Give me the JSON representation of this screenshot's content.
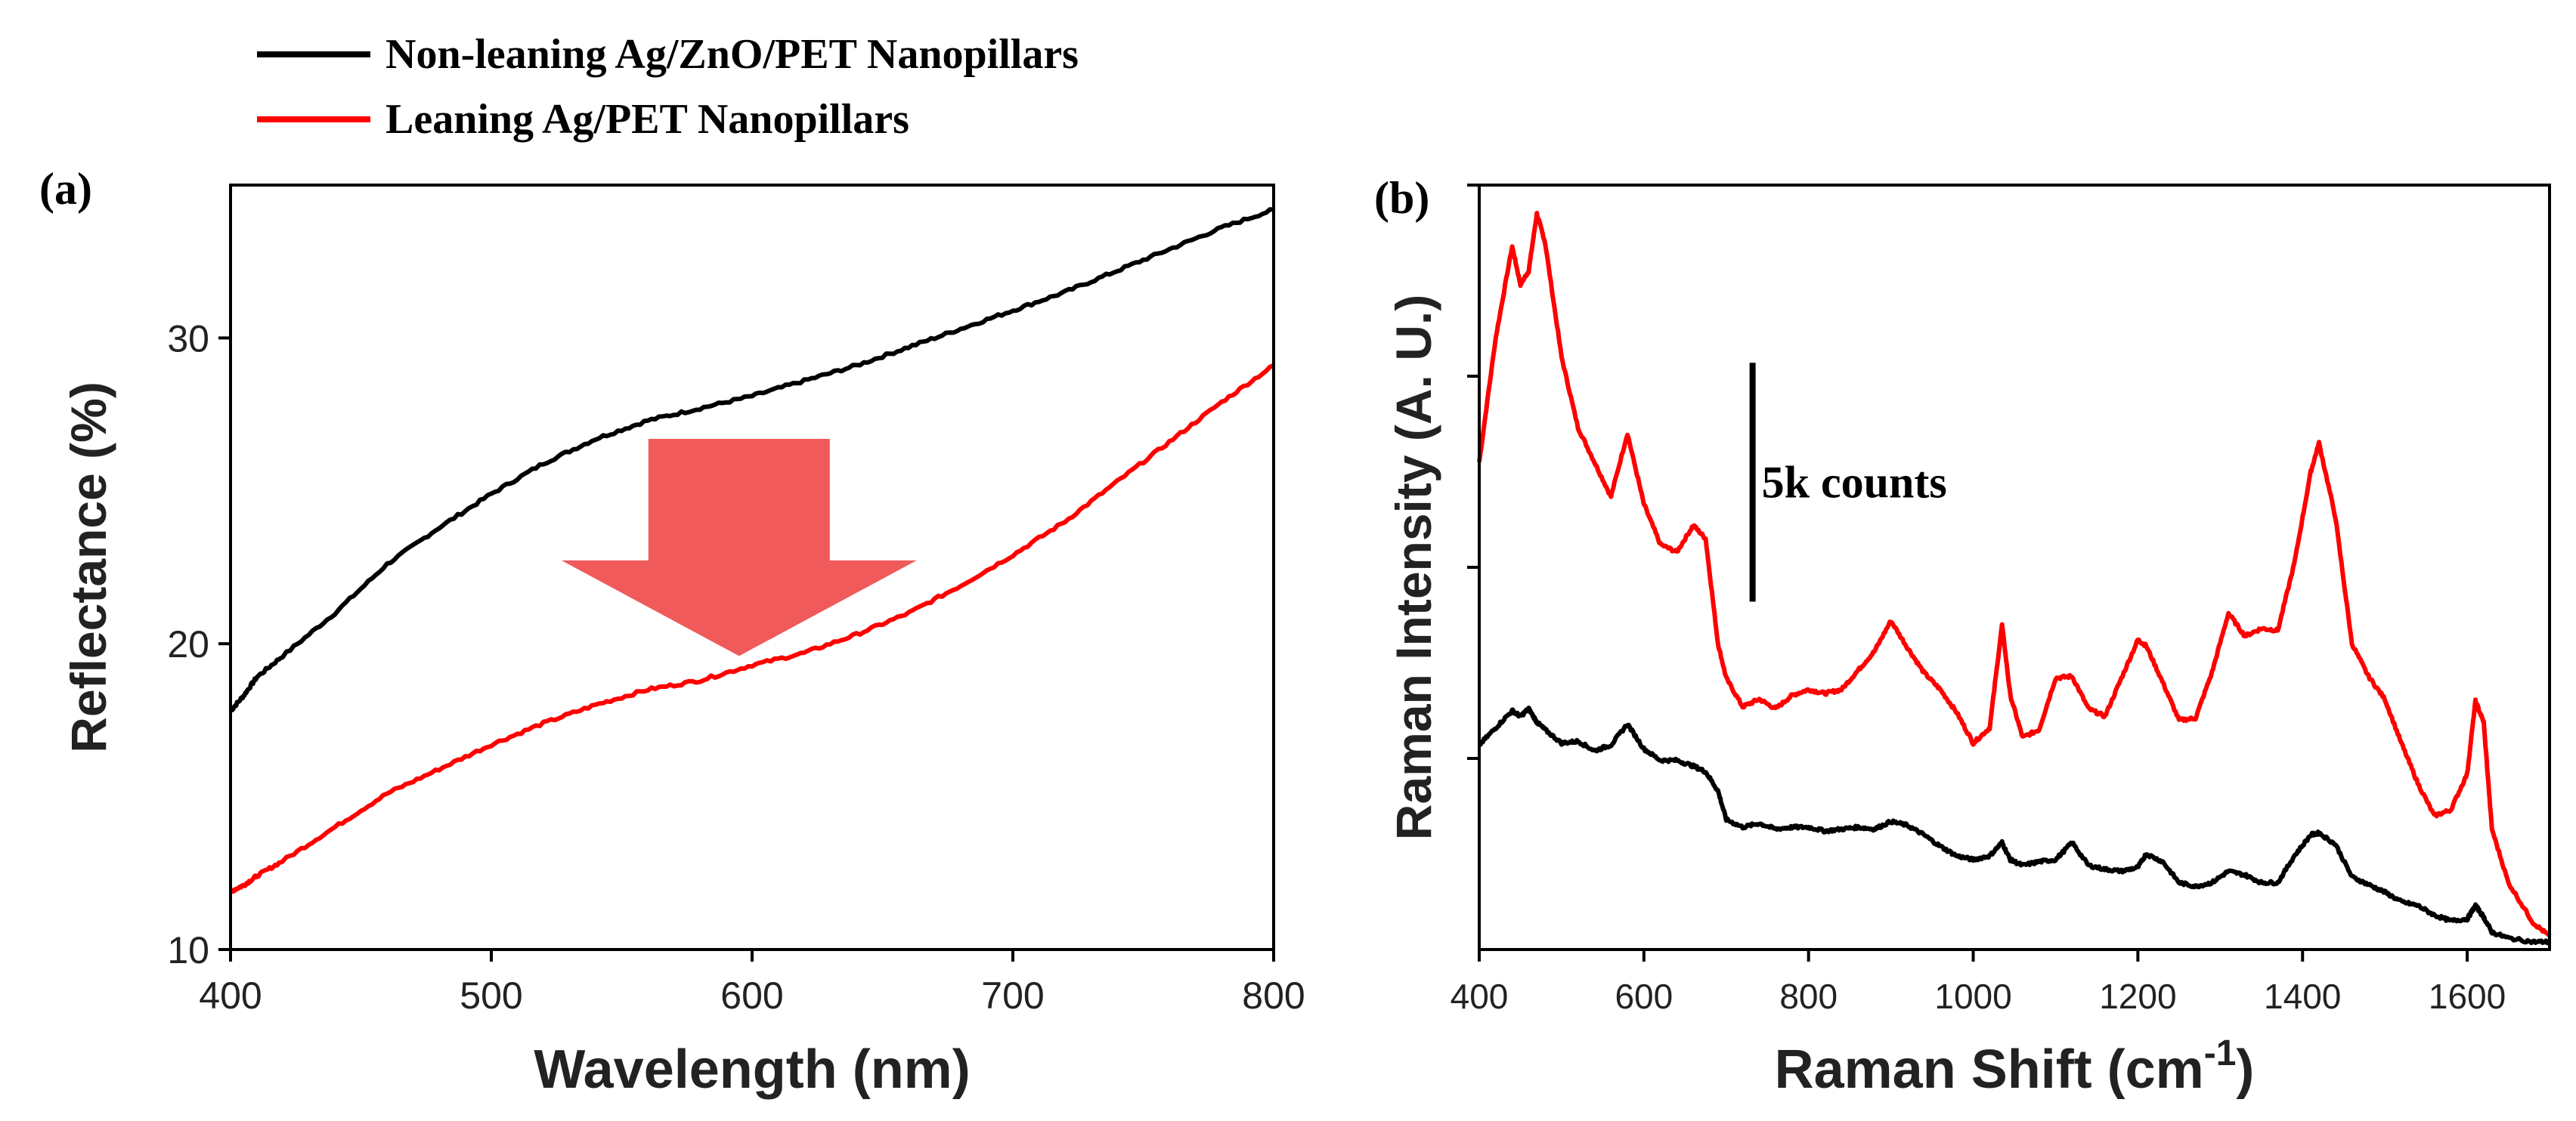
{
  "legend": {
    "placement": "top-left",
    "items": [
      {
        "label": "Non-leaning Ag/ZnO/PET Nanopillars",
        "color": "#000000"
      },
      {
        "label": "Leaning Ag/PET Nanopillars",
        "color": "#ff0000"
      }
    ]
  },
  "chart_data": [
    {
      "type": "line",
      "panel_label": "(a)",
      "xlabel": "Wavelength (nm)",
      "ylabel": "Reflectance (%)",
      "xlim": [
        400,
        800
      ],
      "ylim": [
        10,
        35
      ],
      "x_ticks": [
        400,
        500,
        600,
        700,
        800
      ],
      "x_tick_labels": [
        "400",
        "500",
        "600",
        "700",
        "800"
      ],
      "y_ticks": [
        10,
        20,
        30
      ],
      "y_tick_labels": [
        "10",
        "20",
        "30"
      ],
      "grid": false,
      "annotations": [
        {
          "type": "arrow",
          "direction": "down",
          "color": "#f05a5a",
          "from": [
            595,
            26.7
          ],
          "to": [
            595,
            19.6
          ],
          "note": "reflectance decrease"
        }
      ],
      "series": [
        {
          "name": "Non-leaning Ag/ZnO/PET Nanopillars",
          "color": "#000000",
          "x": [
            400,
            405,
            410,
            420,
            440,
            460,
            480,
            500,
            520,
            540,
            560,
            580,
            600,
            620,
            640,
            660,
            680,
            700,
            720,
            740,
            760,
            780,
            800
          ],
          "y": [
            17.8,
            18.3,
            18.9,
            19.6,
            21.0,
            22.6,
            23.8,
            24.9,
            25.9,
            26.7,
            27.3,
            27.7,
            28.1,
            28.6,
            29.1,
            29.7,
            30.3,
            30.9,
            31.5,
            32.2,
            32.9,
            33.6,
            34.2
          ]
        },
        {
          "name": "Leaning Ag/PET Nanopillars",
          "color": "#ff0000",
          "x": [
            400,
            405,
            410,
            420,
            440,
            460,
            480,
            500,
            520,
            540,
            560,
            580,
            600,
            620,
            640,
            660,
            680,
            700,
            720,
            740,
            760,
            780,
            800
          ],
          "y": [
            11.9,
            12.1,
            12.4,
            12.9,
            14.0,
            15.1,
            15.9,
            16.7,
            17.4,
            18.0,
            18.5,
            18.8,
            19.3,
            19.7,
            20.3,
            21.0,
            21.9,
            22.9,
            24.0,
            25.3,
            26.6,
            27.9,
            29.1
          ]
        }
      ]
    },
    {
      "type": "line",
      "panel_label": "(b)",
      "xlabel_main": "Raman Shift (cm",
      "xlabel_sup": "-1",
      "xlabel_close": ")",
      "ylabel": "Raman Intensity (A. U.)",
      "xlim": [
        400,
        1700
      ],
      "ylim": [
        0,
        40
      ],
      "x_ticks": [
        400,
        600,
        800,
        1000,
        1200,
        1400,
        1600
      ],
      "x_tick_labels": [
        "400",
        "600",
        "800",
        "1000",
        "1200",
        "1400",
        "1600"
      ],
      "y_ticks": [
        10,
        20,
        30,
        40
      ],
      "y_tick_labels": [],
      "grid": false,
      "scale_bar": {
        "label": "5k counts",
        "x": 732,
        "y_from": 18.2,
        "y_to": 30.7
      },
      "series": [
        {
          "name": "Leaning Ag/PET Nanopillars",
          "color": "#ff0000",
          "x": [
            400,
            420,
            440,
            450,
            460,
            470,
            480,
            500,
            520,
            540,
            560,
            580,
            600,
            620,
            640,
            660,
            675,
            690,
            700,
            720,
            740,
            760,
            780,
            800,
            820,
            840,
            860,
            880,
            900,
            920,
            940,
            960,
            980,
            1000,
            1020,
            1035,
            1045,
            1060,
            1080,
            1100,
            1120,
            1140,
            1160,
            1180,
            1200,
            1210,
            1230,
            1250,
            1270,
            1290,
            1310,
            1330,
            1350,
            1370,
            1390,
            1410,
            1420,
            1440,
            1460,
            1480,
            1500,
            1520,
            1540,
            1560,
            1580,
            1600,
            1610,
            1620,
            1630,
            1650,
            1680,
            1700
          ],
          "y": [
            25.5,
            32.0,
            36.8,
            34.8,
            35.5,
            38.5,
            37.0,
            31.0,
            27.3,
            25.5,
            23.7,
            27.0,
            23.3,
            21.2,
            20.8,
            22.2,
            21.5,
            16.0,
            14.2,
            12.7,
            13.1,
            12.6,
            13.3,
            13.6,
            13.4,
            13.6,
            14.6,
            15.6,
            17.2,
            15.8,
            14.5,
            13.6,
            12.4,
            10.8,
            11.6,
            17.0,
            13.3,
            11.1,
            11.5,
            14.2,
            14.3,
            12.6,
            12.2,
            14.2,
            16.2,
            15.9,
            14.0,
            12.0,
            12.1,
            14.5,
            17.6,
            16.4,
            16.8,
            16.7,
            20.2,
            25.0,
            26.5,
            22.6,
            16.0,
            14.3,
            13.1,
            10.8,
            8.7,
            7.0,
            7.3,
            9.2,
            13.0,
            11.9,
            6.3,
            3.5,
            1.4,
            0.7
          ]
        },
        {
          "name": "Non-leaning Ag/ZnO/PET Nanopillars",
          "color": "#000000",
          "x": [
            400,
            420,
            440,
            450,
            460,
            470,
            480,
            500,
            520,
            540,
            560,
            580,
            600,
            620,
            640,
            660,
            675,
            690,
            700,
            720,
            740,
            760,
            780,
            800,
            820,
            840,
            860,
            880,
            900,
            920,
            940,
            960,
            980,
            1000,
            1020,
            1035,
            1045,
            1060,
            1080,
            1100,
            1120,
            1140,
            1160,
            1180,
            1200,
            1210,
            1230,
            1250,
            1270,
            1290,
            1310,
            1330,
            1350,
            1370,
            1390,
            1410,
            1420,
            1440,
            1460,
            1480,
            1500,
            1520,
            1540,
            1560,
            1580,
            1600,
            1610,
            1620,
            1630,
            1650,
            1680,
            1700
          ],
          "y": [
            10.7,
            11.6,
            12.5,
            12.2,
            12.6,
            11.9,
            11.5,
            10.8,
            10.9,
            10.4,
            10.7,
            11.8,
            10.5,
            9.9,
            9.9,
            9.6,
            9.3,
            8.3,
            6.8,
            6.4,
            6.6,
            6.3,
            6.4,
            6.4,
            6.2,
            6.3,
            6.4,
            6.3,
            6.7,
            6.5,
            6.0,
            5.4,
            4.9,
            4.7,
            4.9,
            5.6,
            4.7,
            4.4,
            4.6,
            4.7,
            5.6,
            4.4,
            4.2,
            4.1,
            4.3,
            5.0,
            4.6,
            3.5,
            3.3,
            3.5,
            4.1,
            3.9,
            3.5,
            3.5,
            4.9,
            6.0,
            6.1,
            5.5,
            3.8,
            3.4,
            3.0,
            2.5,
            2.3,
            1.8,
            1.5,
            1.6,
            2.3,
            1.7,
            0.9,
            0.6,
            0.4,
            0.4
          ]
        }
      ]
    }
  ]
}
